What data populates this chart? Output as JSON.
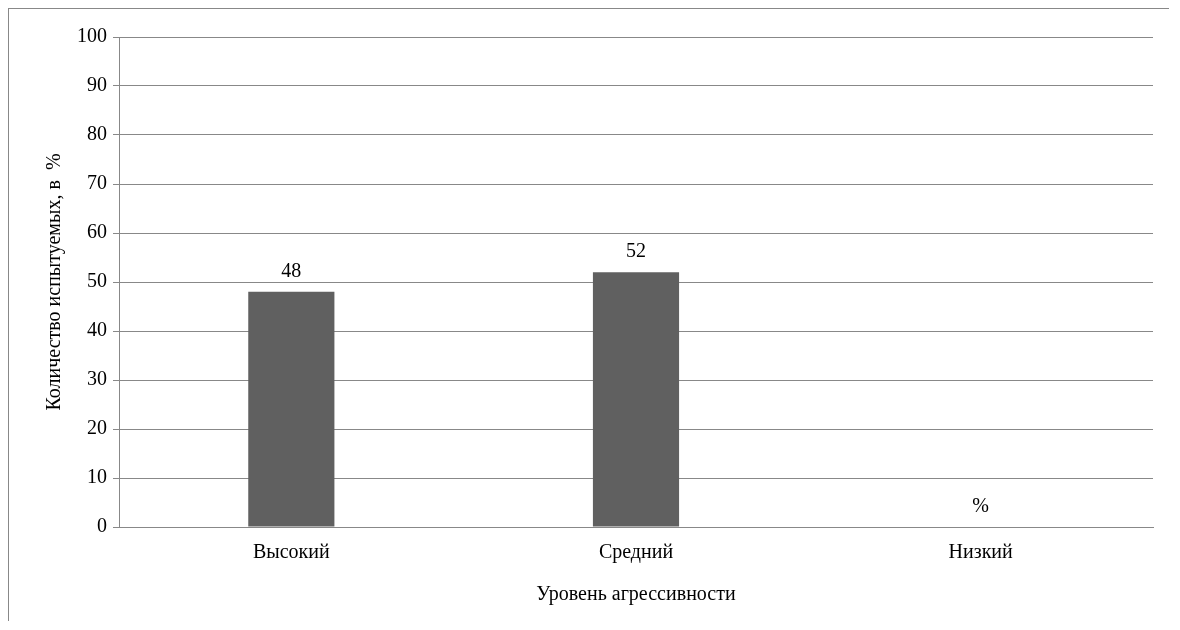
{
  "chart_data": {
    "type": "bar",
    "xlabel": "Уровень агрессивности",
    "ylabel": "Количество испытуемых, в  %",
    "categories": [
      "Высокий",
      "Средний",
      "Низкий"
    ],
    "values": [
      48,
      52,
      0
    ],
    "value_labels": [
      "48",
      "52",
      "%"
    ],
    "color": "#606060",
    "ylim": [
      0,
      100
    ],
    "yticks": [
      0,
      10,
      20,
      30,
      40,
      50,
      60,
      70,
      80,
      90,
      100
    ],
    "grid": "y",
    "legend": false
  }
}
